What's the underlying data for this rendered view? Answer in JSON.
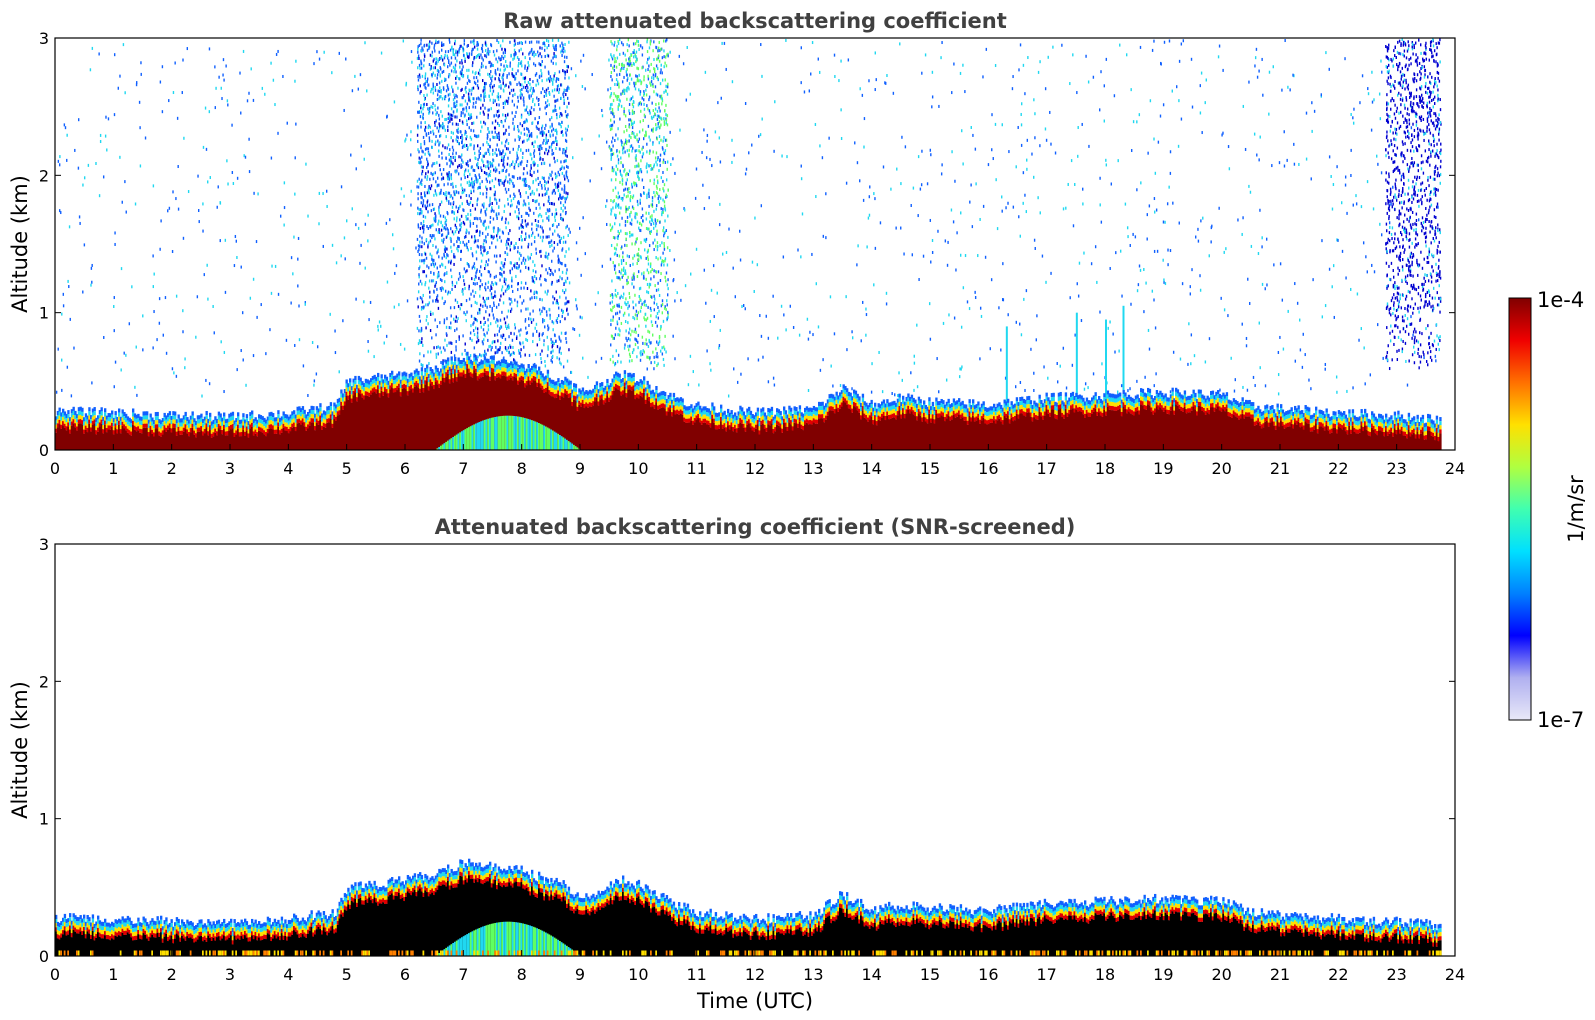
{
  "chart_data": [
    {
      "type": "heatmap",
      "title": "Raw attenuated backscattering coefficient",
      "xlabel": "",
      "ylabel": "Altitude (km)",
      "xlim": [
        0,
        24
      ],
      "ylim": [
        0,
        3
      ],
      "x_ticks": [
        "0",
        "1",
        "2",
        "3",
        "4",
        "5",
        "6",
        "7",
        "8",
        "9",
        "10",
        "11",
        "12",
        "13",
        "14",
        "15",
        "16",
        "17",
        "18",
        "19",
        "20",
        "21",
        "22",
        "23",
        "24"
      ],
      "y_ticks": [
        "0",
        "1",
        "2",
        "3"
      ],
      "grid": false,
      "data_end_time": 23.75,
      "boundary_layer_top_km": {
        "time_utc": [
          0,
          1,
          2,
          3,
          4,
          4.8,
          5,
          6,
          6.5,
          7,
          8,
          8.8,
          9,
          9.7,
          10,
          10.5,
          11,
          12,
          13,
          13.5,
          14,
          14.5,
          15,
          16,
          17,
          18,
          19,
          20,
          20.5,
          21,
          22,
          23,
          23.75
        ],
        "altitude_km": [
          0.28,
          0.27,
          0.25,
          0.24,
          0.27,
          0.32,
          0.5,
          0.55,
          0.6,
          0.68,
          0.62,
          0.5,
          0.42,
          0.55,
          0.52,
          0.4,
          0.32,
          0.27,
          0.3,
          0.45,
          0.33,
          0.38,
          0.35,
          0.33,
          0.38,
          0.4,
          0.42,
          0.4,
          0.32,
          0.3,
          0.27,
          0.25,
          0.22
        ]
      },
      "aerosol_plumes_km": [
        {
          "time_utc_range": [
            6.2,
            8.8
          ],
          "top_km": 3.0,
          "note_color": "blue-cyan"
        },
        {
          "time_utc_range": [
            9.5,
            10.5
          ],
          "top_km": 3.0,
          "note_color": "cyan-green"
        },
        {
          "time_utc_range": [
            22.8,
            23.75
          ],
          "top_km": 3.0,
          "note_color": "blue"
        }
      ],
      "spikes": [
        {
          "time_utc": 16.3,
          "top_km": 0.9
        },
        {
          "time_utc": 17.5,
          "top_km": 1.0
        },
        {
          "time_utc": 18.3,
          "top_km": 1.05
        },
        {
          "time_utc": 18.0,
          "top_km": 0.95
        }
      ]
    },
    {
      "type": "heatmap",
      "title": "Attenuated backscattering coefficient (SNR-screened)",
      "xlabel": "Time (UTC)",
      "ylabel": "Altitude (km)",
      "xlim": [
        0,
        24
      ],
      "ylim": [
        0,
        3
      ],
      "x_ticks": [
        "0",
        "1",
        "2",
        "3",
        "4",
        "5",
        "6",
        "7",
        "8",
        "9",
        "10",
        "11",
        "12",
        "13",
        "14",
        "15",
        "16",
        "17",
        "18",
        "19",
        "20",
        "21",
        "22",
        "23",
        "24"
      ],
      "y_ticks": [
        "0",
        "1",
        "2",
        "3"
      ],
      "grid": false,
      "data_end_time": 23.75,
      "screened_out_above_km": 0.75
    }
  ],
  "colorbar": {
    "label": "1/m/sr",
    "max_label": "1e-4",
    "min_label": "1e-7",
    "scale": "log",
    "colormap": "jet",
    "colors": [
      "#e8e8f8",
      "#b0b0f0",
      "#0000ff",
      "#0080ff",
      "#00e0ff",
      "#40ffb0",
      "#b0ff40",
      "#ffe000",
      "#ff7000",
      "#f00000",
      "#800000"
    ]
  },
  "colors": {
    "deep_red": "#800000",
    "red": "#e00000",
    "orange": "#ff8000",
    "yellow": "#ffe000",
    "green": "#60ff60",
    "cyan": "#20d8f0",
    "blue": "#1060ff",
    "dark_blue": "#0000d0",
    "black": "#000000"
  }
}
